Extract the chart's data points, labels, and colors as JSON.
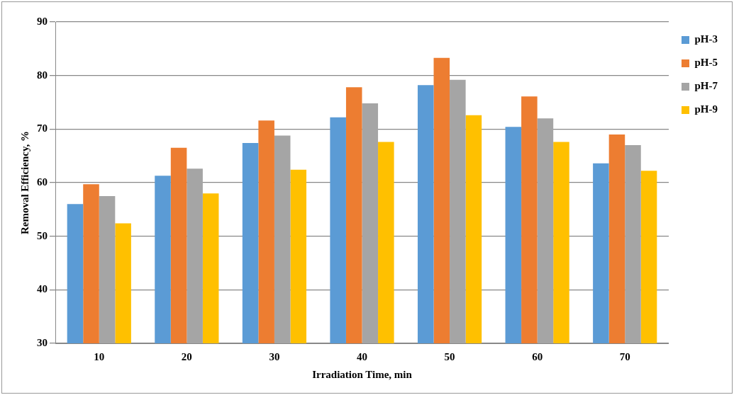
{
  "chart_data": {
    "type": "bar",
    "xlabel": "Irradiation Time, min",
    "ylabel": "Removal Efficiency, %",
    "categories": [
      "10",
      "20",
      "30",
      "40",
      "50",
      "60",
      "70"
    ],
    "series": [
      {
        "name": "pH-3",
        "color": "#5b9bd5",
        "values": [
          56,
          61.3,
          67.4,
          72.2,
          78.2,
          70.4,
          63.6
        ]
      },
      {
        "name": "pH-5",
        "color": "#ed7d31",
        "values": [
          59.7,
          66.5,
          71.6,
          77.8,
          83.3,
          76.1,
          69
        ]
      },
      {
        "name": "pH-7",
        "color": "#a5a5a5",
        "values": [
          57.5,
          62.6,
          68.8,
          74.8,
          79.2,
          72,
          67
        ]
      },
      {
        "name": "pH-9",
        "color": "#ffc000",
        "values": [
          52.4,
          58,
          62.4,
          67.6,
          72.6,
          67.6,
          62.2
        ]
      }
    ],
    "ylim": [
      30,
      90
    ],
    "yticks": [
      30,
      40,
      50,
      60,
      70,
      80,
      90
    ],
    "grid": "y",
    "legend": "right"
  }
}
